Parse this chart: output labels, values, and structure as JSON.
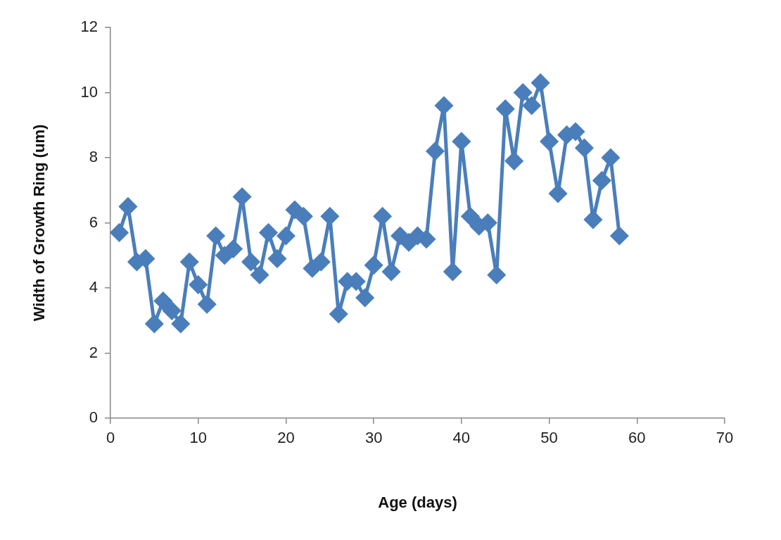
{
  "chart_data": {
    "type": "line",
    "xlabel": "Age (days)",
    "ylabel": "Width of Growth Ring (um)",
    "x": [
      1,
      2,
      3,
      4,
      5,
      6,
      7,
      8,
      9,
      10,
      11,
      12,
      13,
      14,
      15,
      16,
      17,
      18,
      19,
      20,
      21,
      22,
      23,
      24,
      25,
      26,
      27,
      28,
      29,
      30,
      31,
      32,
      33,
      34,
      35,
      36,
      37,
      38,
      39,
      40,
      41,
      42,
      43,
      44,
      45,
      46,
      47,
      48,
      49,
      50,
      51,
      52,
      53,
      54,
      55,
      56,
      57,
      58
    ],
    "series": [
      {
        "color": "#4a7ebb",
        "values": [
          5.7,
          6.5,
          4.8,
          4.9,
          2.9,
          3.6,
          3.3,
          2.9,
          4.8,
          4.1,
          3.5,
          5.6,
          5.0,
          5.2,
          6.8,
          4.8,
          4.4,
          5.7,
          4.9,
          5.6,
          6.4,
          6.2,
          4.6,
          4.8,
          6.2,
          3.2,
          4.2,
          4.2,
          3.7,
          4.7,
          6.2,
          4.5,
          5.6,
          5.4,
          5.6,
          5.5,
          8.2,
          9.6,
          4.5,
          8.5,
          6.2,
          5.9,
          6.0,
          4.4,
          9.5,
          7.9,
          10.0,
          9.6,
          10.3,
          8.5,
          6.9,
          8.7,
          8.8,
          8.3,
          6.1,
          7.3,
          8.0,
          5.6
        ]
      }
    ],
    "xlim": [
      0,
      70
    ],
    "xticks": [
      0,
      10,
      20,
      30,
      40,
      50,
      60,
      70
    ],
    "ylim": [
      0,
      12
    ],
    "yticks": [
      0,
      2,
      4,
      6,
      8,
      10,
      12
    ],
    "grid": false,
    "legend": false,
    "marker": "diamond",
    "line_style": "solid"
  }
}
